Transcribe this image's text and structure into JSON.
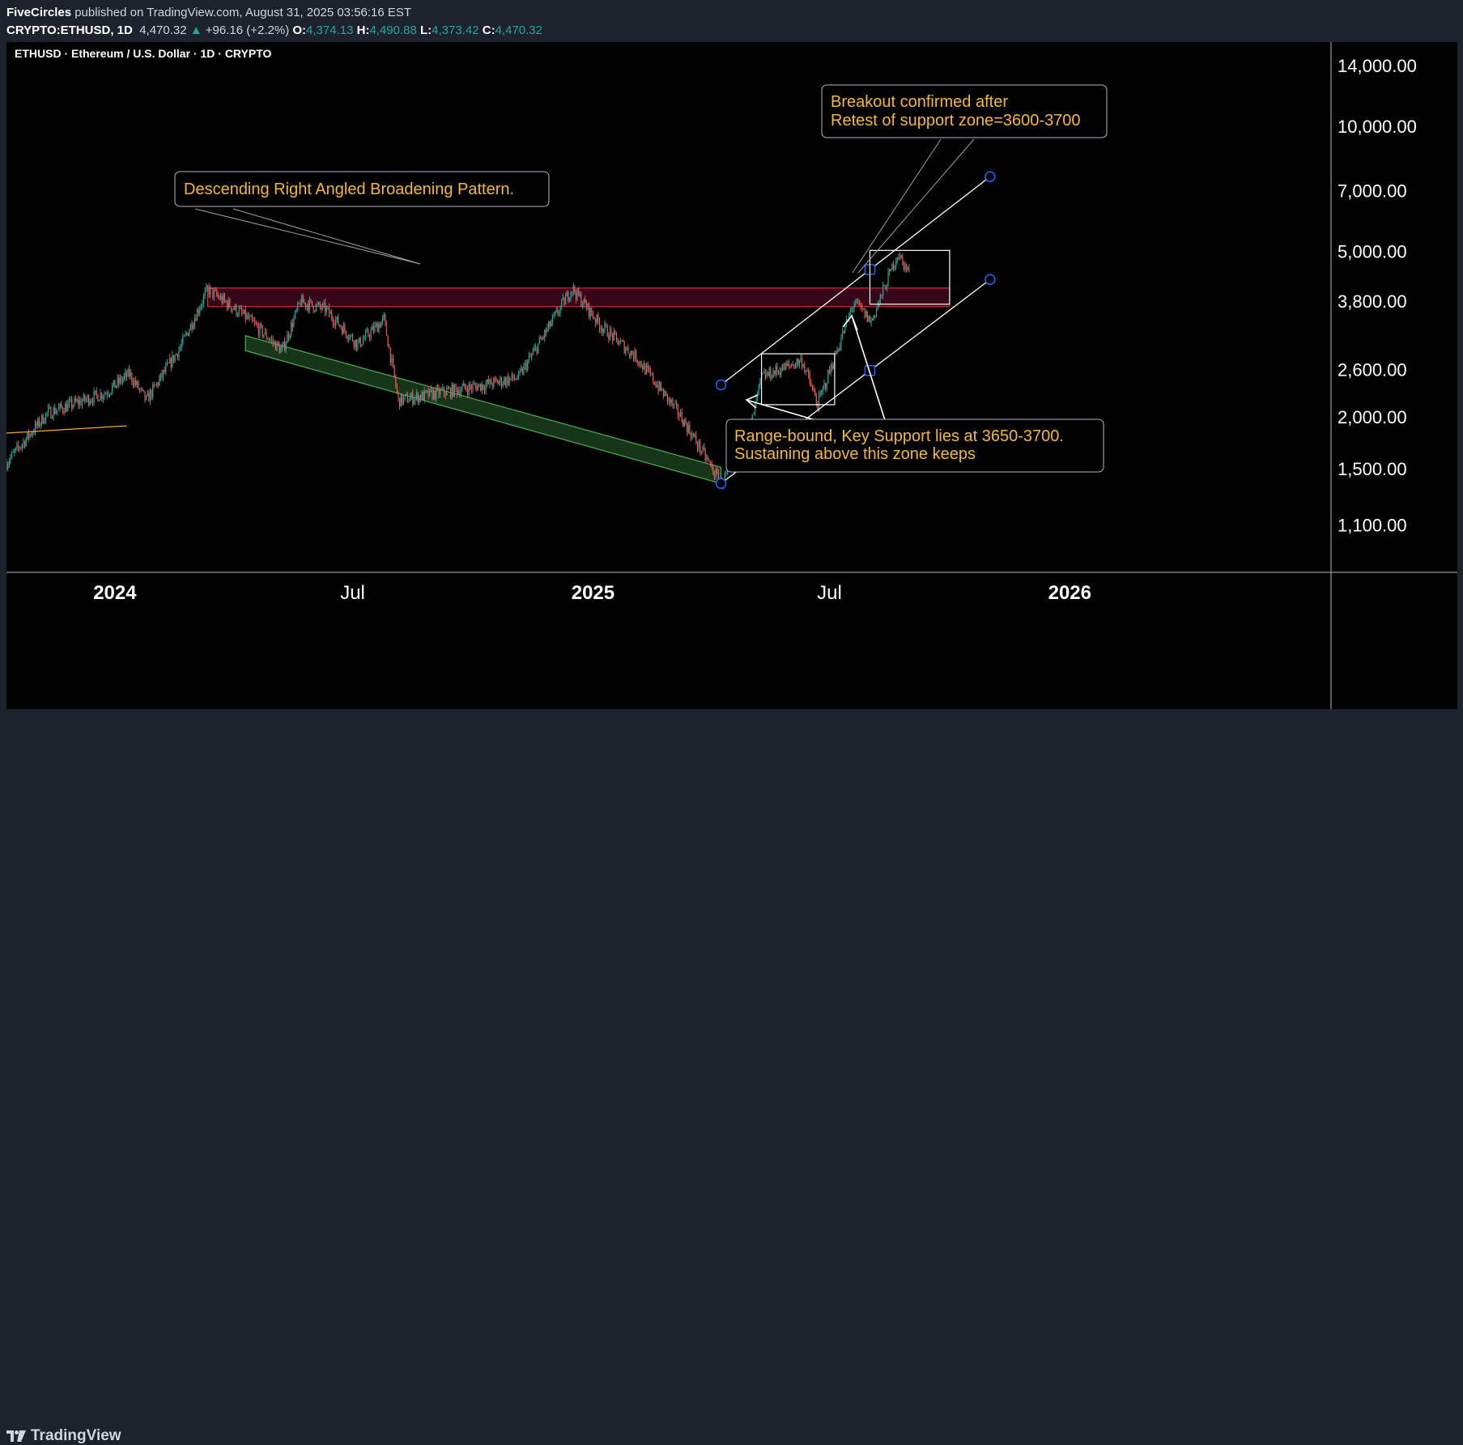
{
  "header": {
    "publisher": "FiveCircles",
    "published_text": "published on TradingView.com, August 31, 2025 03:56:16 EST",
    "symbol": "CRYPTO:ETHUSD, 1D",
    "last": "4,470.32",
    "change": "+96.16 (+2.2%)",
    "o_label": "O:",
    "o_value": "4,374.13",
    "h_label": "H:",
    "h_value": "4,490.88",
    "l_label": "L:",
    "l_value": "4,373.42",
    "c_label": "C:",
    "c_value": "4,470.32"
  },
  "footer": {
    "brand": "TradingView"
  },
  "colors": {
    "up": "#26a69a",
    "down": "#ef5350",
    "annotation_text": "#f7b731",
    "resistance_band": "#c2185b",
    "support_channel": "#4caf50",
    "trend_lines": "#ffffff",
    "anchor_points": "#2962ff"
  },
  "chart_data": {
    "type": "candlestick",
    "title": "ETHUSD · Ethereum / U.S. Dollar · 1D · CRYPTO",
    "y_scale": "log",
    "ylim": [
      850,
      16000
    ],
    "y_ticks": [
      14000,
      10000,
      7000,
      5000,
      3800,
      2600,
      2000,
      1500,
      1100
    ],
    "y_tick_labels": [
      "14,000.00",
      "10,000.00",
      "7,000.00",
      "5,000.00",
      "3,800.00",
      "2,600.00",
      "2,000.00",
      "1,500.00",
      "1,100.00"
    ],
    "x_range": [
      "2023-10-10",
      "2026-07-20"
    ],
    "x_ticks": [
      {
        "label": "2024",
        "date": "2024-01-01",
        "bold": true
      },
      {
        "label": "Jul",
        "date": "2024-07-01",
        "bold": false
      },
      {
        "label": "2025",
        "date": "2025-01-01",
        "bold": true
      },
      {
        "label": "Jul",
        "date": "2025-07-01",
        "bold": false
      },
      {
        "label": "2026",
        "date": "2026-01-01",
        "bold": true
      }
    ],
    "price_path": [
      {
        "date": "2023-10-10",
        "price": 1560
      },
      {
        "date": "2023-11-10",
        "price": 2050
      },
      {
        "date": "2023-12-25",
        "price": 2300
      },
      {
        "date": "2024-01-12",
        "price": 2550
      },
      {
        "date": "2024-01-25",
        "price": 2200
      },
      {
        "date": "2024-02-20",
        "price": 2950
      },
      {
        "date": "2024-03-12",
        "price": 4070
      },
      {
        "date": "2024-04-10",
        "price": 3500
      },
      {
        "date": "2024-05-08",
        "price": 2900
      },
      {
        "date": "2024-05-22",
        "price": 3800
      },
      {
        "date": "2024-06-10",
        "price": 3650
      },
      {
        "date": "2024-07-05",
        "price": 3000
      },
      {
        "date": "2024-07-25",
        "price": 3450
      },
      {
        "date": "2024-08-05",
        "price": 2200
      },
      {
        "date": "2024-09-06",
        "price": 2300
      },
      {
        "date": "2024-10-10",
        "price": 2400
      },
      {
        "date": "2024-11-05",
        "price": 2500
      },
      {
        "date": "2024-12-16",
        "price": 4100
      },
      {
        "date": "2025-01-08",
        "price": 3300
      },
      {
        "date": "2025-02-03",
        "price": 2800
      },
      {
        "date": "2025-03-10",
        "price": 2000
      },
      {
        "date": "2025-04-09",
        "price": 1390
      },
      {
        "date": "2025-04-30",
        "price": 1800
      },
      {
        "date": "2025-05-10",
        "price": 2500
      },
      {
        "date": "2025-06-10",
        "price": 2750
      },
      {
        "date": "2025-06-22",
        "price": 2150
      },
      {
        "date": "2025-07-20",
        "price": 3800
      },
      {
        "date": "2025-08-02",
        "price": 3400
      },
      {
        "date": "2025-08-22",
        "price": 4950
      },
      {
        "date": "2025-08-31",
        "price": 4470
      }
    ],
    "annotations": [
      {
        "text": "Descending Right Angled Broadening Pattern."
      },
      {
        "text_lines": [
          "Breakout confirmed after",
          "Retest of support zone=3600-3700"
        ]
      },
      {
        "text_lines": [
          "Range-bound, Key Support lies at 3650-3700.",
          "Sustaining above this zone keeps"
        ]
      }
    ],
    "resistance_zone": {
      "from": "2024-03-12",
      "to": "2025-10-01",
      "low": 3700,
      "high": 4100
    },
    "support_channel": {
      "start": {
        "date": "2024-04-10",
        "low": 2900,
        "high": 3150
      },
      "end": {
        "date": "2025-04-09",
        "low": 1390,
        "high": 1520
      }
    },
    "ascending_channel": {
      "upper": [
        {
          "date": "2025-04-09",
          "price": 2400
        },
        {
          "date": "2025-11-01",
          "price": 7600
        }
      ],
      "lower": [
        {
          "date": "2025-04-09",
          "price": 1390
        },
        {
          "date": "2025-11-01",
          "price": 4300
        }
      ]
    },
    "range_box": {
      "from": "2025-05-10",
      "to": "2025-07-05",
      "low": 2150,
      "high": 2850
    },
    "breakout_box": {
      "from": "2025-08-01",
      "to": "2025-10-01",
      "low": 3750,
      "high": 5050
    }
  }
}
